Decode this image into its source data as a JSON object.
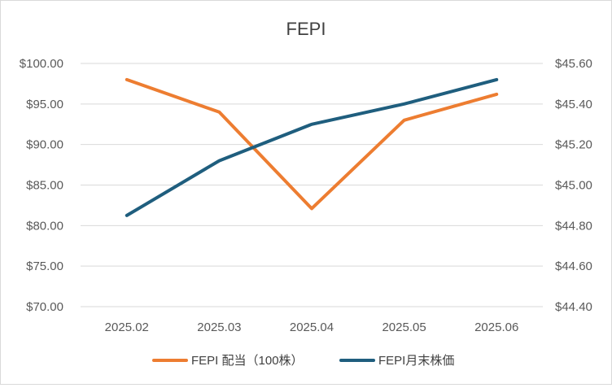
{
  "chart_data": {
    "type": "line",
    "title": "FEPI",
    "categories": [
      "2025.02",
      "2025.03",
      "2025.04",
      "2025.05",
      "2025.06"
    ],
    "series": [
      {
        "name": "FEPI 配当（100株）",
        "axis": "left",
        "color": "#ED7D31",
        "values": [
          98.0,
          94.0,
          82.1,
          93.0,
          96.2
        ]
      },
      {
        "name": "FEPI月末株価",
        "axis": "right",
        "color": "#1F5E7E",
        "values": [
          44.85,
          45.12,
          45.3,
          45.4,
          45.52
        ]
      }
    ],
    "y_left": {
      "ylim": [
        70,
        100
      ],
      "ticks": [
        "$70.00",
        "$75.00",
        "$80.00",
        "$85.00",
        "$90.00",
        "$95.00",
        "$100.00"
      ]
    },
    "y_right": {
      "ylim": [
        44.4,
        45.6
      ],
      "ticks": [
        "$44.40",
        "$44.60",
        "$44.80",
        "$45.00",
        "$45.20",
        "$45.40",
        "$45.60"
      ]
    },
    "grid": true,
    "legend": "bottom"
  }
}
